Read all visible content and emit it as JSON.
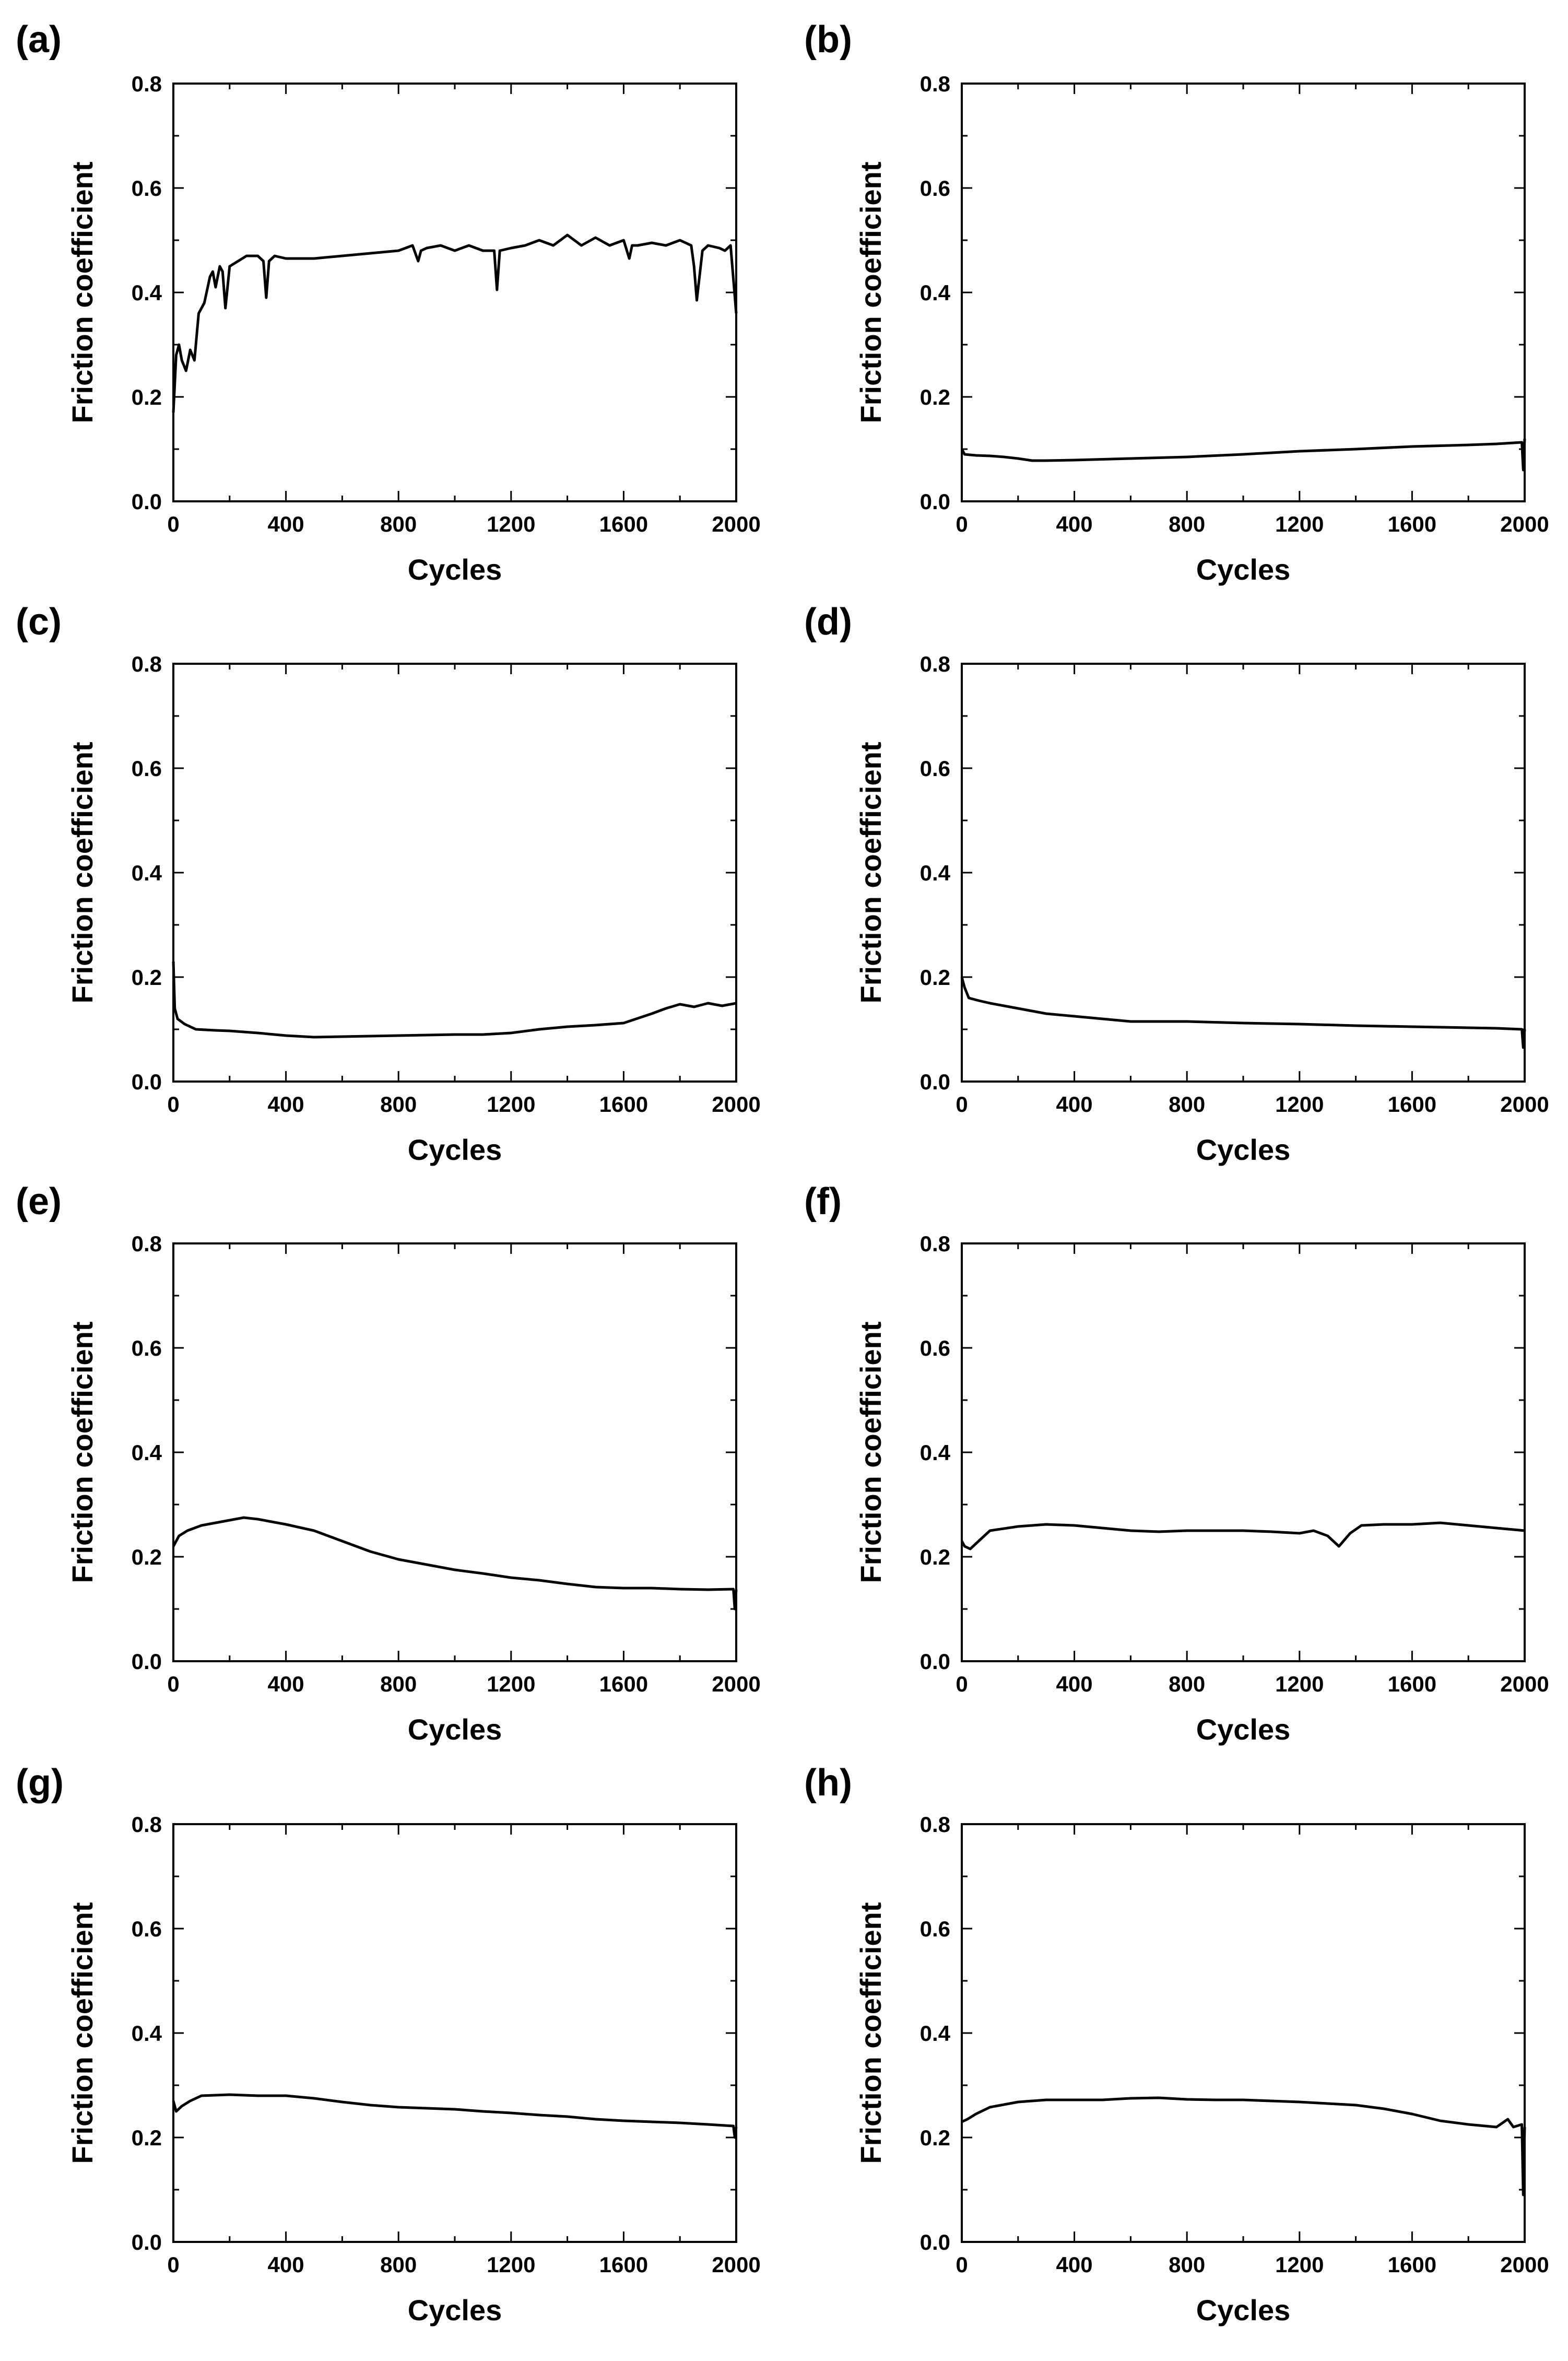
{
  "chart_data": [
    {
      "panel": "(a)",
      "type": "line",
      "xlabel": "Cycles",
      "ylabel": "Friction coefficient",
      "xlim": [
        0,
        2000
      ],
      "ylim": [
        0.0,
        0.8
      ],
      "xticks": [
        "0",
        "400",
        "800",
        "1200",
        "1600",
        "2000"
      ],
      "yticks": [
        "0.0",
        "0.2",
        "0.4",
        "0.6",
        "0.8"
      ],
      "series": [
        {
          "name": "a",
          "x": [
            0,
            10,
            20,
            30,
            45,
            60,
            75,
            90,
            110,
            130,
            140,
            150,
            165,
            175,
            185,
            200,
            230,
            260,
            300,
            320,
            330,
            340,
            360,
            400,
            500,
            600,
            700,
            800,
            850,
            870,
            880,
            900,
            950,
            1000,
            1050,
            1100,
            1140,
            1150,
            1160,
            1200,
            1250,
            1300,
            1350,
            1400,
            1450,
            1500,
            1550,
            1600,
            1620,
            1630,
            1650,
            1700,
            1750,
            1800,
            1840,
            1850,
            1860,
            1880,
            1900,
            1940,
            1960,
            1980,
            2000
          ],
          "y": [
            0.17,
            0.28,
            0.3,
            0.27,
            0.25,
            0.29,
            0.27,
            0.36,
            0.38,
            0.43,
            0.44,
            0.41,
            0.45,
            0.44,
            0.37,
            0.45,
            0.46,
            0.47,
            0.47,
            0.46,
            0.39,
            0.46,
            0.47,
            0.465,
            0.465,
            0.47,
            0.475,
            0.48,
            0.49,
            0.46,
            0.48,
            0.485,
            0.49,
            0.48,
            0.49,
            0.48,
            0.48,
            0.405,
            0.48,
            0.485,
            0.49,
            0.5,
            0.49,
            0.51,
            0.49,
            0.505,
            0.49,
            0.5,
            0.465,
            0.49,
            0.49,
            0.495,
            0.49,
            0.5,
            0.49,
            0.45,
            0.385,
            0.48,
            0.49,
            0.485,
            0.48,
            0.49,
            0.36
          ]
        }
      ]
    },
    {
      "panel": "(b)",
      "type": "line",
      "xlabel": "Cycles",
      "ylabel": "Friction coefficient",
      "xlim": [
        0,
        2000
      ],
      "ylim": [
        0.0,
        0.8
      ],
      "xticks": [
        "0",
        "400",
        "800",
        "1200",
        "1600",
        "2000"
      ],
      "yticks": [
        "0.0",
        "0.2",
        "0.4",
        "0.6",
        "0.8"
      ],
      "series": [
        {
          "name": "b",
          "x": [
            0,
            10,
            50,
            100,
            150,
            200,
            250,
            300,
            400,
            600,
            800,
            1000,
            1200,
            1400,
            1600,
            1800,
            1900,
            1990,
            1995,
            2000
          ],
          "y": [
            0.1,
            0.09,
            0.088,
            0.087,
            0.085,
            0.082,
            0.078,
            0.078,
            0.079,
            0.082,
            0.085,
            0.09,
            0.096,
            0.1,
            0.105,
            0.108,
            0.11,
            0.113,
            0.06,
            0.12
          ]
        }
      ]
    },
    {
      "panel": "(c)",
      "type": "line",
      "xlabel": "Cycles",
      "ylabel": "Friction coefficient",
      "xlim": [
        0,
        2000
      ],
      "ylim": [
        0.0,
        0.8
      ],
      "xticks": [
        "0",
        "400",
        "800",
        "1200",
        "1600",
        "2000"
      ],
      "yticks": [
        "0.0",
        "0.2",
        "0.4",
        "0.6",
        "0.8"
      ],
      "series": [
        {
          "name": "c",
          "x": [
            0,
            5,
            15,
            40,
            80,
            150,
            200,
            300,
            400,
            500,
            600,
            700,
            800,
            900,
            1000,
            1100,
            1200,
            1300,
            1400,
            1500,
            1600,
            1700,
            1750,
            1800,
            1850,
            1900,
            1950,
            2000
          ],
          "y": [
            0.23,
            0.14,
            0.12,
            0.11,
            0.1,
            0.098,
            0.097,
            0.093,
            0.088,
            0.085,
            0.086,
            0.087,
            0.088,
            0.089,
            0.09,
            0.09,
            0.093,
            0.1,
            0.105,
            0.108,
            0.112,
            0.13,
            0.14,
            0.148,
            0.143,
            0.15,
            0.145,
            0.15
          ]
        }
      ]
    },
    {
      "panel": "(d)",
      "type": "line",
      "xlabel": "Cycles",
      "ylabel": "Friction coefficient",
      "xlim": [
        0,
        2000
      ],
      "ylim": [
        0.0,
        0.8
      ],
      "xticks": [
        "0",
        "400",
        "800",
        "1200",
        "1600",
        "2000"
      ],
      "yticks": [
        "0.0",
        "0.2",
        "0.4",
        "0.6",
        "0.8"
      ],
      "series": [
        {
          "name": "d",
          "x": [
            0,
            10,
            25,
            60,
            100,
            200,
            300,
            400,
            500,
            600,
            800,
            1000,
            1200,
            1400,
            1600,
            1800,
            1900,
            1990,
            1995,
            2000
          ],
          "y": [
            0.2,
            0.18,
            0.16,
            0.155,
            0.15,
            0.14,
            0.13,
            0.125,
            0.12,
            0.115,
            0.115,
            0.112,
            0.11,
            0.107,
            0.105,
            0.103,
            0.102,
            0.1,
            0.065,
            0.1
          ]
        }
      ]
    },
    {
      "panel": "(e)",
      "type": "line",
      "xlabel": "Cycles",
      "ylabel": "Friction coefficient",
      "xlim": [
        0,
        2000
      ],
      "ylim": [
        0.0,
        0.8
      ],
      "xticks": [
        "0",
        "400",
        "800",
        "1200",
        "1600",
        "2000"
      ],
      "yticks": [
        "0.0",
        "0.2",
        "0.4",
        "0.6",
        "0.8"
      ],
      "series": [
        {
          "name": "e",
          "x": [
            0,
            20,
            50,
            100,
            150,
            200,
            250,
            300,
            400,
            500,
            600,
            700,
            800,
            900,
            1000,
            1100,
            1200,
            1300,
            1400,
            1500,
            1600,
            1700,
            1800,
            1900,
            1990,
            1995,
            2000
          ],
          "y": [
            0.22,
            0.24,
            0.25,
            0.26,
            0.265,
            0.27,
            0.275,
            0.272,
            0.262,
            0.25,
            0.23,
            0.21,
            0.195,
            0.185,
            0.175,
            0.168,
            0.16,
            0.155,
            0.148,
            0.142,
            0.14,
            0.14,
            0.138,
            0.137,
            0.138,
            0.1,
            0.137
          ]
        }
      ]
    },
    {
      "panel": "(f)",
      "type": "line",
      "xlabel": "Cycles",
      "ylabel": "Friction coefficient",
      "xlim": [
        0,
        2000
      ],
      "ylim": [
        0.0,
        0.8
      ],
      "xticks": [
        "0",
        "400",
        "800",
        "1200",
        "1600",
        "2000"
      ],
      "yticks": [
        "0.0",
        "0.2",
        "0.4",
        "0.6",
        "0.8"
      ],
      "series": [
        {
          "name": "f",
          "x": [
            0,
            10,
            30,
            60,
            100,
            200,
            300,
            400,
            500,
            600,
            700,
            800,
            900,
            1000,
            1100,
            1200,
            1250,
            1300,
            1340,
            1380,
            1420,
            1500,
            1600,
            1700,
            1800,
            1900,
            2000
          ],
          "y": [
            0.23,
            0.22,
            0.215,
            0.23,
            0.25,
            0.258,
            0.262,
            0.26,
            0.255,
            0.25,
            0.248,
            0.25,
            0.25,
            0.25,
            0.248,
            0.245,
            0.25,
            0.24,
            0.22,
            0.245,
            0.26,
            0.262,
            0.262,
            0.265,
            0.26,
            0.255,
            0.25
          ]
        }
      ]
    },
    {
      "panel": "(g)",
      "type": "line",
      "xlabel": "Cycles",
      "ylabel": "Friction coefficient",
      "xlim": [
        0,
        2000
      ],
      "ylim": [
        0.0,
        0.8
      ],
      "xticks": [
        "0",
        "400",
        "800",
        "1200",
        "1600",
        "2000"
      ],
      "yticks": [
        "0.0",
        "0.2",
        "0.4",
        "0.6",
        "0.8"
      ],
      "series": [
        {
          "name": "g",
          "x": [
            0,
            10,
            30,
            60,
            100,
            200,
            300,
            400,
            500,
            600,
            700,
            800,
            900,
            1000,
            1100,
            1200,
            1300,
            1400,
            1500,
            1600,
            1700,
            1800,
            1900,
            1990,
            1995,
            2000
          ],
          "y": [
            0.27,
            0.25,
            0.26,
            0.27,
            0.28,
            0.282,
            0.28,
            0.28,
            0.275,
            0.268,
            0.262,
            0.258,
            0.256,
            0.254,
            0.25,
            0.247,
            0.243,
            0.24,
            0.235,
            0.232,
            0.23,
            0.228,
            0.225,
            0.222,
            0.2,
            0.22
          ]
        }
      ]
    },
    {
      "panel": "(h)",
      "type": "line",
      "xlabel": "Cycles",
      "ylabel": "Friction coefficient",
      "xlim": [
        0,
        2000
      ],
      "ylim": [
        0.0,
        0.8
      ],
      "xticks": [
        "0",
        "400",
        "800",
        "1200",
        "1600",
        "2000"
      ],
      "yticks": [
        "0.0",
        "0.2",
        "0.4",
        "0.6",
        "0.8"
      ],
      "series": [
        {
          "name": "h",
          "x": [
            0,
            20,
            50,
            100,
            200,
            300,
            400,
            500,
            600,
            700,
            800,
            900,
            1000,
            1100,
            1200,
            1300,
            1400,
            1500,
            1600,
            1700,
            1800,
            1900,
            1940,
            1960,
            1990,
            1995,
            2000
          ],
          "y": [
            0.23,
            0.235,
            0.245,
            0.258,
            0.268,
            0.272,
            0.272,
            0.272,
            0.275,
            0.276,
            0.273,
            0.272,
            0.272,
            0.27,
            0.268,
            0.265,
            0.262,
            0.255,
            0.245,
            0.232,
            0.225,
            0.22,
            0.235,
            0.22,
            0.225,
            0.09,
            0.22
          ]
        }
      ]
    }
  ]
}
